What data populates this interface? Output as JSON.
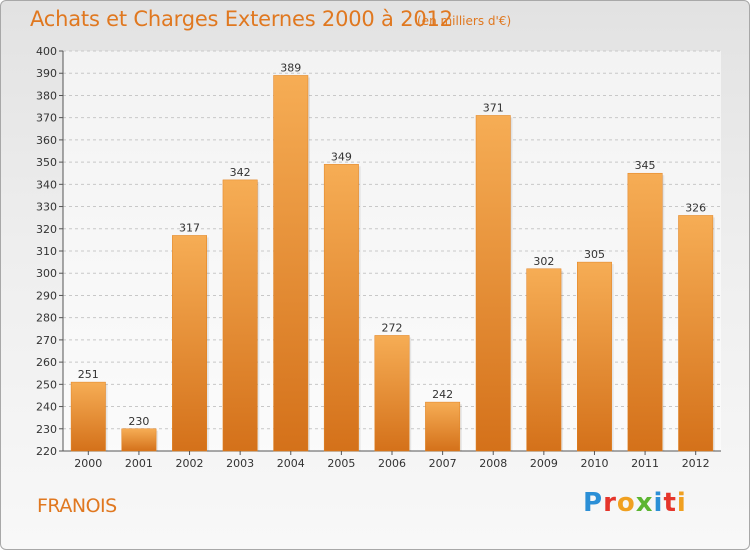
{
  "title": "Achats et Charges Externes 2000 à 2012",
  "subtitle": "(en milliers d'€)",
  "place": "FRANOIS",
  "logo": {
    "letters": [
      "P",
      "r",
      "o",
      "x",
      "i",
      "t",
      "i"
    ],
    "colors": [
      "#2b8fd6",
      "#e5352b",
      "#f0a020",
      "#5cb531",
      "#2b8fd6",
      "#e5352b",
      "#f0a020"
    ]
  },
  "colors": {
    "bar": "#f0902a",
    "bar_light": "#f6ad55",
    "bar_dark": "#d4711a",
    "text_accent": "#e07820"
  },
  "chart_data": {
    "type": "bar",
    "title": "Achats et Charges Externes 2000 à 2012",
    "subtitle": "(en milliers d'€)",
    "categories": [
      "2000",
      "2001",
      "2002",
      "2003",
      "2004",
      "2005",
      "2006",
      "2007",
      "2008",
      "2009",
      "2010",
      "2011",
      "2012"
    ],
    "values": [
      251,
      230,
      317,
      342,
      389,
      349,
      272,
      242,
      371,
      302,
      305,
      345,
      326
    ],
    "ylim": [
      220,
      400
    ],
    "yticks": [
      220,
      230,
      240,
      250,
      260,
      270,
      280,
      290,
      300,
      310,
      320,
      330,
      340,
      350,
      360,
      370,
      380,
      390,
      400
    ],
    "grid": true,
    "xlabel": "",
    "ylabel": ""
  }
}
